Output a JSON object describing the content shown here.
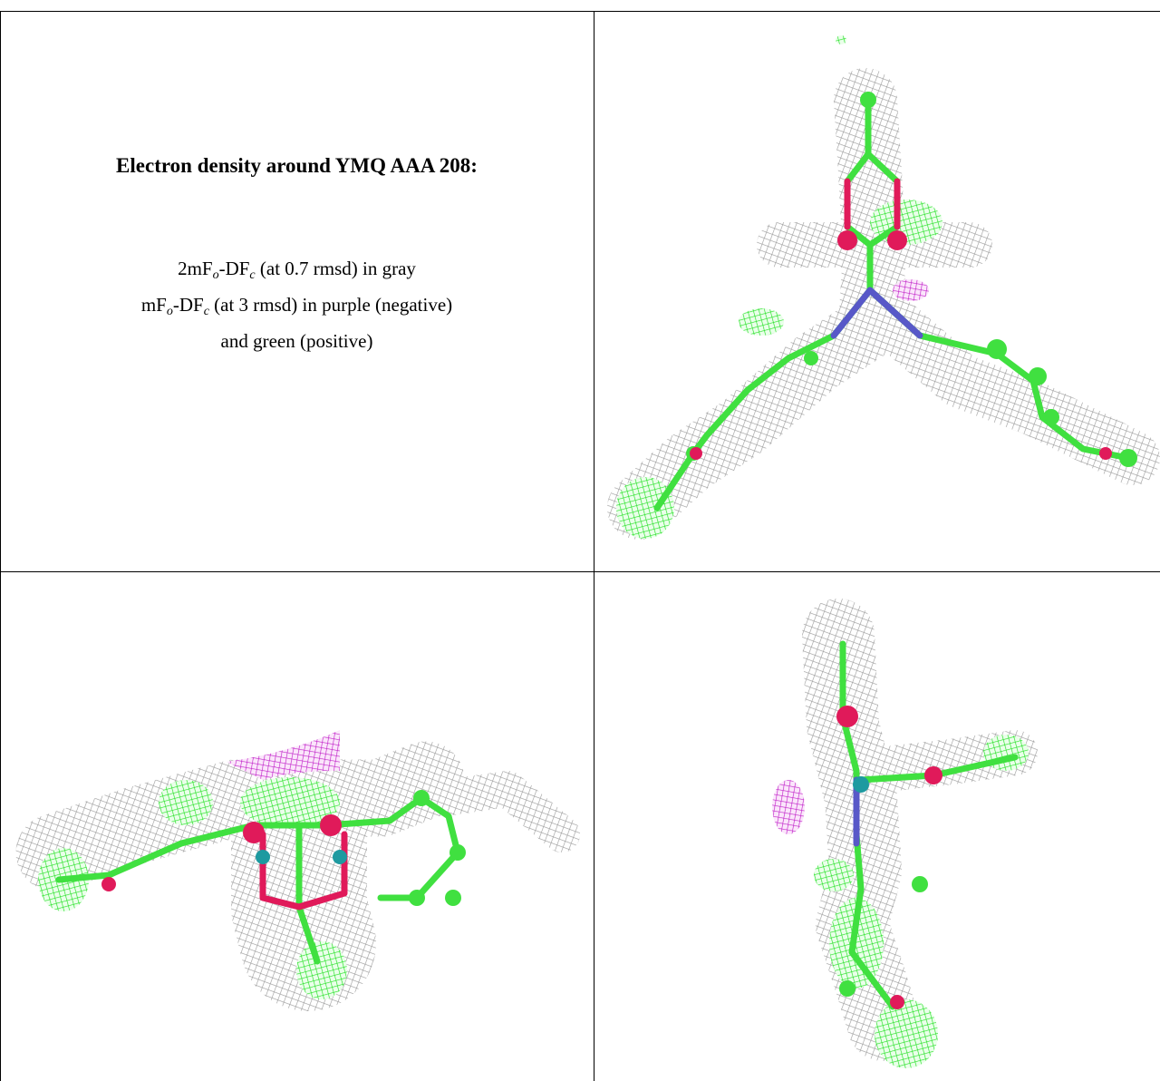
{
  "caption": {
    "title": "Electron density around YMQ AAA 208:",
    "lines": [
      [
        "2mF",
        "o",
        "-DF",
        "c",
        " (at 0.7 rmsd) in gray"
      ],
      [
        "mF",
        "o",
        "-DF",
        "c",
        " (at 3 rmsd) in purple (negative)"
      ],
      [
        "and green (positive)"
      ]
    ]
  }
}
